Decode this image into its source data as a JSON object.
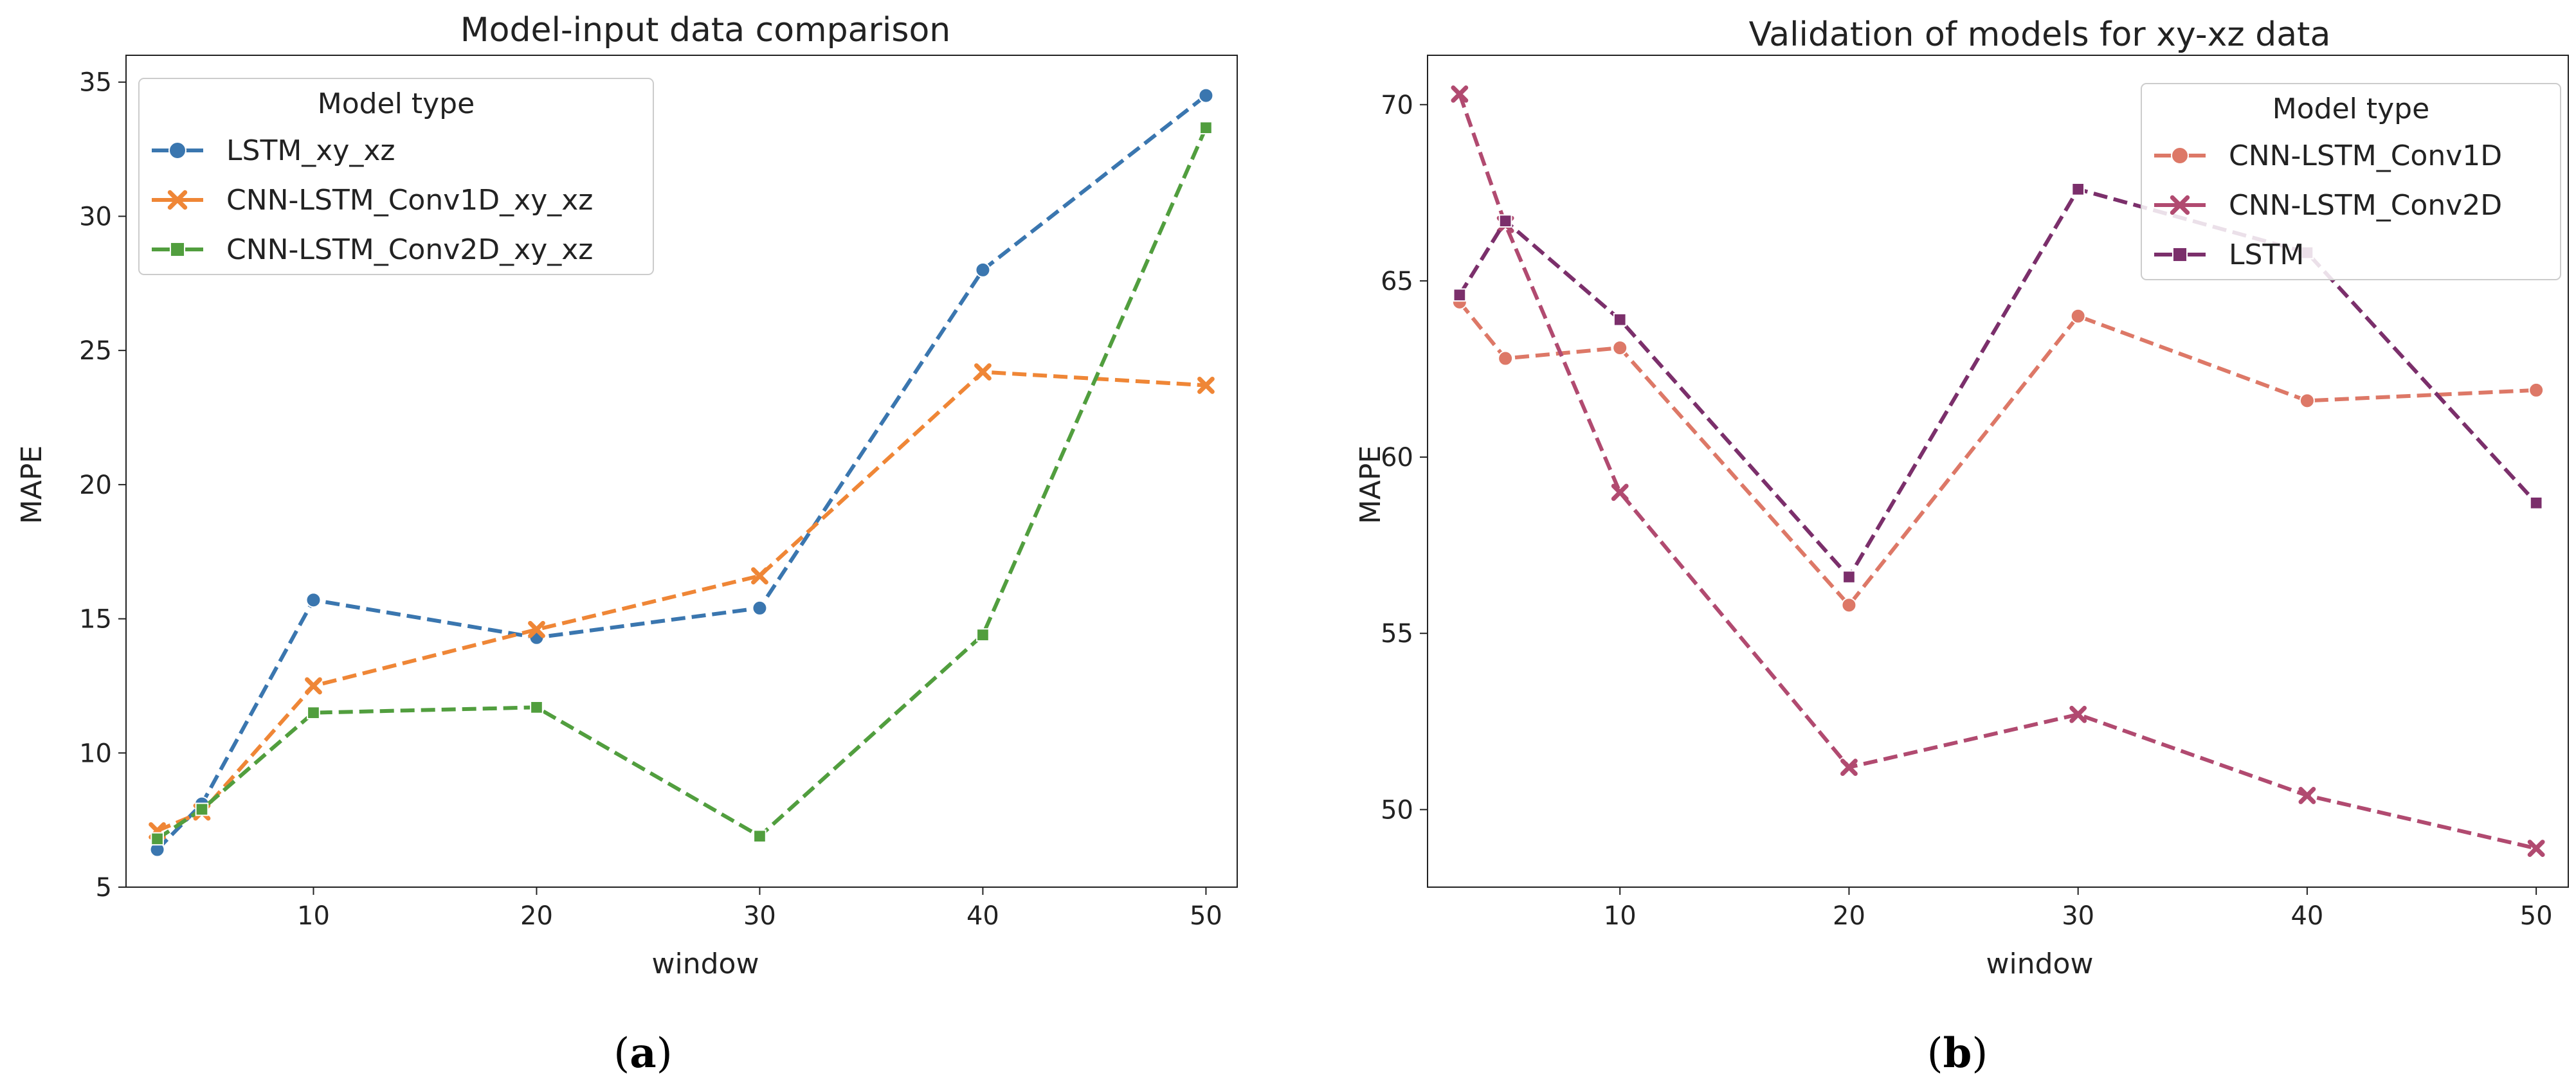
{
  "chart_data": [
    {
      "type": "line",
      "title": "Model-input data comparison",
      "xlabel": "window",
      "ylabel": "MAPE",
      "xlim": [
        1.6,
        51.4
      ],
      "ylim": [
        5,
        36
      ],
      "xticks": [
        10,
        20,
        30,
        40,
        50
      ],
      "yticks": [
        5,
        10,
        15,
        20,
        25,
        30,
        35
      ],
      "caption": {
        "open": "(",
        "letter": "a",
        "close": ")"
      },
      "legend": {
        "title": "Model type",
        "position": "top-left"
      },
      "series": [
        {
          "name": "LSTM_xy_xz",
          "color": "#3a76af",
          "marker": "circle",
          "x": [
            3,
            5,
            10,
            20,
            30,
            40,
            50
          ],
          "y": [
            6.4,
            8.1,
            15.7,
            14.3,
            15.4,
            28.0,
            34.5
          ]
        },
        {
          "name": "CNN-LSTM_Conv1D_xy_xz",
          "color": "#ef8636",
          "marker": "x",
          "x": [
            3,
            5,
            10,
            20,
            30,
            40,
            50
          ],
          "y": [
            7.1,
            7.8,
            12.5,
            14.6,
            16.6,
            24.2,
            23.7
          ]
        },
        {
          "name": "CNN-LSTM_Conv2D_xy_xz",
          "color": "#519e3e",
          "marker": "square",
          "x": [
            3,
            5,
            10,
            20,
            30,
            40,
            50
          ],
          "y": [
            6.8,
            7.9,
            11.5,
            11.7,
            6.9,
            14.4,
            33.3
          ]
        }
      ]
    },
    {
      "type": "line",
      "title": "Validation of models for xy-xz data",
      "xlabel": "window",
      "ylabel": "MAPE",
      "xlim": [
        1.6,
        51.4
      ],
      "ylim": [
        47.8,
        71.4
      ],
      "xticks": [
        10,
        20,
        30,
        40,
        50
      ],
      "yticks": [
        50,
        55,
        60,
        65,
        70
      ],
      "caption": {
        "open": "(",
        "letter": "b",
        "close": ")"
      },
      "legend": {
        "title": "Model type",
        "position": "top-right"
      },
      "series": [
        {
          "name": "CNN-LSTM_Conv1D",
          "color": "#dd7867",
          "marker": "circle",
          "x": [
            3,
            5,
            10,
            20,
            30,
            40,
            50
          ],
          "y": [
            64.4,
            62.8,
            63.1,
            55.8,
            64.0,
            61.6,
            61.9
          ]
        },
        {
          "name": "CNN-LSTM_Conv2D",
          "color": "#b14a70",
          "marker": "x",
          "x": [
            3,
            5,
            10,
            20,
            30,
            40,
            50
          ],
          "y": [
            70.3,
            66.6,
            59.0,
            51.2,
            52.7,
            50.4,
            48.9
          ]
        },
        {
          "name": "LSTM",
          "color": "#7b2f6b",
          "marker": "square",
          "x": [
            3,
            5,
            10,
            20,
            30,
            40,
            50
          ],
          "y": [
            64.6,
            66.7,
            63.9,
            56.6,
            67.6,
            65.8,
            58.7
          ]
        }
      ]
    }
  ]
}
